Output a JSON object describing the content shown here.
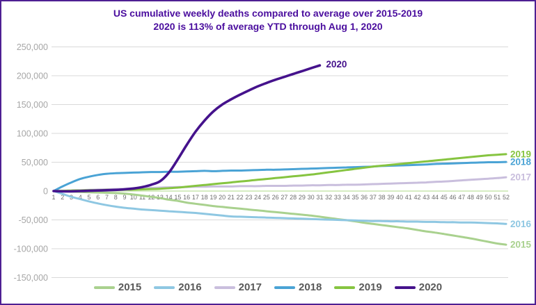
{
  "window": {
    "border_color": "#4e2093",
    "background": "#ffffff"
  },
  "title": {
    "line1": "US cumulative weekly deaths compared to average over 2015-2019",
    "line2": "2020 is 113% of average YTD through Aug 1, 2020",
    "color": "#4a0d9e"
  },
  "chart_data": {
    "type": "line",
    "title": "US cumulative weekly deaths compared to average over 2015-2019",
    "subtitle": "2020 is 113% of average YTD through Aug 1, 2020",
    "xlabel": "",
    "ylabel": "",
    "x": [
      1,
      2,
      3,
      4,
      5,
      6,
      7,
      8,
      9,
      10,
      11,
      12,
      13,
      14,
      15,
      16,
      17,
      18,
      19,
      20,
      21,
      22,
      23,
      24,
      25,
      26,
      27,
      28,
      29,
      30,
      31,
      32,
      33,
      34,
      35,
      36,
      37,
      38,
      39,
      40,
      41,
      42,
      43,
      44,
      45,
      46,
      47,
      48,
      49,
      50,
      51,
      52
    ],
    "xlim": [
      1,
      52
    ],
    "ylim": [
      -150000,
      250000
    ],
    "grid": {
      "show": true,
      "color": "#d9d9d9"
    },
    "y_tick_color": "#a6a6a6",
    "x_tick_color": "#6d6d6d",
    "y_ticks": [
      {
        "value": 250000,
        "label": "250,000"
      },
      {
        "value": 200000,
        "label": "200,000"
      },
      {
        "value": 150000,
        "label": "150,000"
      },
      {
        "value": 100000,
        "label": "100,000"
      },
      {
        "value": 50000,
        "label": "50,000"
      },
      {
        "value": 0,
        "label": "0"
      },
      {
        "value": -50000,
        "label": "-50,000"
      },
      {
        "value": -100000,
        "label": "-100,000"
      },
      {
        "value": -150000,
        "label": "-150,000"
      }
    ],
    "zero_baseline": {
      "value": 0,
      "color": "#c9e6ae"
    },
    "legend_position": "bottom",
    "legend_text_color": "#595959",
    "series": [
      {
        "name": "2015",
        "color": "#a9d18e",
        "end_label": true,
        "values": [
          0,
          -500,
          -1000,
          -1500,
          -2000,
          -2500,
          -3000,
          -3500,
          -4500,
          -6000,
          -8000,
          -10000,
          -12000,
          -15000,
          -17000,
          -20000,
          -22000,
          -24000,
          -26000,
          -27500,
          -29000,
          -30500,
          -32000,
          -33500,
          -35000,
          -36500,
          -38000,
          -39500,
          -41000,
          -42500,
          -44500,
          -46500,
          -48500,
          -50500,
          -52500,
          -55000,
          -57000,
          -59000,
          -61000,
          -63000,
          -65000,
          -67500,
          -70000,
          -72000,
          -74500,
          -77000,
          -79500,
          -82000,
          -85000,
          -88000,
          -91000,
          -93000
        ]
      },
      {
        "name": "2016",
        "color": "#8ec7e2",
        "end_label": true,
        "values": [
          0,
          -5000,
          -10000,
          -14000,
          -18000,
          -21500,
          -24500,
          -27000,
          -29000,
          -30500,
          -32000,
          -33000,
          -34000,
          -35000,
          -36000,
          -37000,
          -38000,
          -39500,
          -41000,
          -42500,
          -44000,
          -44500,
          -45000,
          -45500,
          -46000,
          -46500,
          -47000,
          -47500,
          -48000,
          -48500,
          -49000,
          -49500,
          -50000,
          -50500,
          -51000,
          -51500,
          -52000,
          -52000,
          -52500,
          -52500,
          -53000,
          -53000,
          -53500,
          -53500,
          -54000,
          -54000,
          -54500,
          -54500,
          -55000,
          -55500,
          -56000,
          -57000
        ]
      },
      {
        "name": "2017",
        "color": "#c9bedd",
        "end_label": true,
        "values": [
          0,
          500,
          1000,
          1500,
          2000,
          2500,
          3000,
          3500,
          4000,
          4500,
          5000,
          5500,
          6000,
          6500,
          7000,
          7000,
          7500,
          7500,
          8000,
          8000,
          8000,
          8500,
          8500,
          8500,
          9000,
          9000,
          9000,
          9500,
          9500,
          10000,
          10000,
          10500,
          10500,
          11000,
          11000,
          11500,
          12000,
          12500,
          13000,
          13500,
          14000,
          14500,
          15000,
          16000,
          16500,
          17500,
          18500,
          19500,
          20500,
          21500,
          22500,
          24000
        ]
      },
      {
        "name": "2018",
        "color": "#4aa3d5",
        "end_label": true,
        "values": [
          0,
          8000,
          15000,
          21000,
          25000,
          28000,
          30000,
          31000,
          31500,
          32000,
          32500,
          33000,
          33000,
          33500,
          33500,
          34000,
          34500,
          35000,
          34500,
          35000,
          35500,
          35500,
          36000,
          36500,
          37000,
          37000,
          37500,
          38000,
          38500,
          39000,
          39500,
          40000,
          40500,
          41000,
          41500,
          42000,
          42500,
          43500,
          44000,
          44500,
          45000,
          45500,
          46000,
          47000,
          47500,
          48000,
          48500,
          49000,
          49500,
          50000,
          50000,
          50500
        ]
      },
      {
        "name": "2019",
        "color": "#86c440",
        "end_label": true,
        "values": [
          0,
          500,
          1000,
          1000,
          1500,
          1500,
          2000,
          2000,
          2500,
          2500,
          3000,
          3500,
          4000,
          5000,
          6000,
          7500,
          9000,
          10500,
          12000,
          13500,
          15000,
          16500,
          18000,
          19500,
          21000,
          22500,
          24000,
          25500,
          27000,
          28500,
          30500,
          32500,
          34500,
          36500,
          38500,
          40500,
          42500,
          44000,
          45500,
          47000,
          48500,
          50000,
          51500,
          53000,
          54500,
          56000,
          57500,
          59000,
          60500,
          62000,
          63000,
          64000
        ]
      },
      {
        "name": "2020",
        "color": "#45128c",
        "end_label": true,
        "values": [
          0,
          -500,
          -500,
          0,
          500,
          1000,
          1500,
          2000,
          3000,
          4500,
          7000,
          11000,
          17000,
          32000,
          55000,
          80000,
          103000,
          122000,
          138000,
          150000,
          159000,
          167000,
          174500,
          181500,
          187500,
          193000,
          198000,
          203000,
          208000,
          213000,
          218000
        ]
      }
    ]
  }
}
